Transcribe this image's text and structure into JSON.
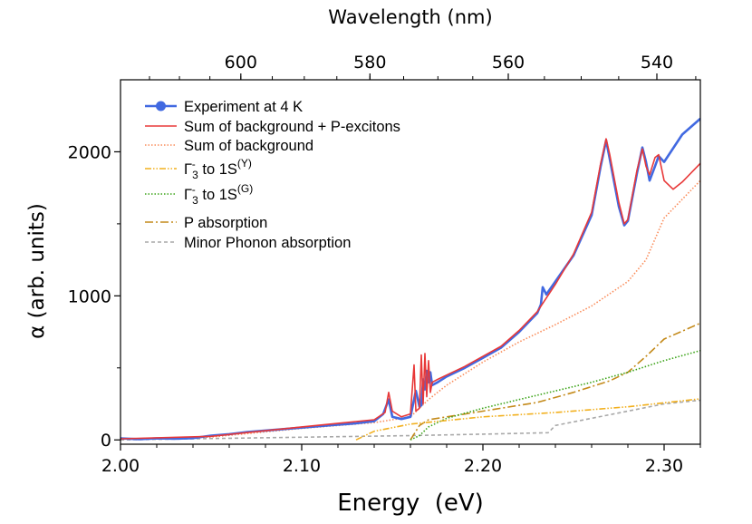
{
  "chart_data": {
    "type": "line",
    "xlabel": "Energy  (eV)",
    "ylabel": "α (arb. units)",
    "top_xlabel": "Wavelength (nm)",
    "xlim": [
      2.0,
      2.32
    ],
    "ylim": [
      -30,
      2500
    ],
    "x_ticks": [
      2.0,
      2.1,
      2.2,
      2.3
    ],
    "x_tick_labels": [
      "2.00",
      "2.10",
      "2.20",
      "2.30"
    ],
    "y_ticks": [
      0,
      1000,
      2000
    ],
    "y_tick_labels": [
      "0",
      "1000",
      "2000"
    ],
    "top_ticks_nm": [
      600,
      580,
      560,
      540
    ],
    "top_tick_labels": [
      "600",
      "580",
      "560",
      "540"
    ],
    "legend_position": "top-left",
    "series": [
      {
        "name": "Experiment at 4 K",
        "style": "solid-marker",
        "color": "#4169E1",
        "points": [
          [
            2.0,
            10
          ],
          [
            2.01,
            5
          ],
          [
            2.02,
            10
          ],
          [
            2.03,
            8
          ],
          [
            2.04,
            12
          ],
          [
            2.05,
            30
          ],
          [
            2.06,
            40
          ],
          [
            2.07,
            55
          ],
          [
            2.08,
            65
          ],
          [
            2.09,
            75
          ],
          [
            2.1,
            85
          ],
          [
            2.11,
            95
          ],
          [
            2.12,
            105
          ],
          [
            2.13,
            115
          ],
          [
            2.14,
            130
          ],
          [
            2.145,
            180
          ],
          [
            2.148,
            280
          ],
          [
            2.15,
            160
          ],
          [
            2.155,
            145
          ],
          [
            2.16,
            160
          ],
          [
            2.163,
            340
          ],
          [
            2.165,
            230
          ],
          [
            2.166,
            240
          ],
          [
            2.167,
            420
          ],
          [
            2.168,
            350
          ],
          [
            2.169,
            480
          ],
          [
            2.17,
            400
          ],
          [
            2.171,
            470
          ],
          [
            2.172,
            380
          ],
          [
            2.175,
            400
          ],
          [
            2.18,
            440
          ],
          [
            2.19,
            500
          ],
          [
            2.2,
            570
          ],
          [
            2.21,
            640
          ],
          [
            2.22,
            750
          ],
          [
            2.23,
            880
          ],
          [
            2.232,
            940
          ],
          [
            2.233,
            1060
          ],
          [
            2.235,
            1010
          ],
          [
            2.24,
            1100
          ],
          [
            2.25,
            1280
          ],
          [
            2.26,
            1560
          ],
          [
            2.265,
            1900
          ],
          [
            2.268,
            2080
          ],
          [
            2.27,
            1950
          ],
          [
            2.275,
            1620
          ],
          [
            2.278,
            1490
          ],
          [
            2.28,
            1520
          ],
          [
            2.285,
            1850
          ],
          [
            2.288,
            2030
          ],
          [
            2.29,
            1930
          ],
          [
            2.292,
            1800
          ],
          [
            2.295,
            1900
          ],
          [
            2.297,
            1970
          ],
          [
            2.3,
            1930
          ],
          [
            2.31,
            2120
          ],
          [
            2.32,
            2230
          ]
        ]
      },
      {
        "name": "Sum of background + P-excitons",
        "style": "solid",
        "color": "#E83838",
        "points": [
          [
            2.0,
            8
          ],
          [
            2.05,
            25
          ],
          [
            2.1,
            90
          ],
          [
            2.14,
            140
          ],
          [
            2.146,
            190
          ],
          [
            2.148,
            330
          ],
          [
            2.15,
            200
          ],
          [
            2.155,
            160
          ],
          [
            2.16,
            180
          ],
          [
            2.162,
            520
          ],
          [
            2.163,
            200
          ],
          [
            2.165,
            220
          ],
          [
            2.166,
            590
          ],
          [
            2.167,
            250
          ],
          [
            2.168,
            600
          ],
          [
            2.169,
            300
          ],
          [
            2.17,
            550
          ],
          [
            2.171,
            330
          ],
          [
            2.172,
            400
          ],
          [
            2.175,
            420
          ],
          [
            2.18,
            450
          ],
          [
            2.19,
            510
          ],
          [
            2.2,
            580
          ],
          [
            2.21,
            650
          ],
          [
            2.22,
            760
          ],
          [
            2.23,
            890
          ],
          [
            2.24,
            1080
          ],
          [
            2.25,
            1290
          ],
          [
            2.26,
            1580
          ],
          [
            2.265,
            1920
          ],
          [
            2.268,
            2090
          ],
          [
            2.27,
            1980
          ],
          [
            2.275,
            1650
          ],
          [
            2.278,
            1500
          ],
          [
            2.28,
            1530
          ],
          [
            2.285,
            1870
          ],
          [
            2.288,
            2020
          ],
          [
            2.29,
            1900
          ],
          [
            2.292,
            1840
          ],
          [
            2.295,
            1960
          ],
          [
            2.297,
            1980
          ],
          [
            2.3,
            1800
          ],
          [
            2.305,
            1740
          ],
          [
            2.31,
            1790
          ],
          [
            2.32,
            1920
          ]
        ]
      },
      {
        "name": "Sum of background",
        "style": "dotted",
        "color": "#FA8C5A",
        "points": [
          [
            2.0,
            5
          ],
          [
            2.05,
            20
          ],
          [
            2.1,
            80
          ],
          [
            2.14,
            120
          ],
          [
            2.16,
            160
          ],
          [
            2.17,
            280
          ],
          [
            2.18,
            380
          ],
          [
            2.2,
            540
          ],
          [
            2.22,
            680
          ],
          [
            2.24,
            800
          ],
          [
            2.26,
            930
          ],
          [
            2.28,
            1100
          ],
          [
            2.29,
            1250
          ],
          [
            2.3,
            1540
          ],
          [
            2.32,
            1800
          ]
        ]
      },
      {
        "name": "Γ3- to 1S(Y)",
        "style": "dash-dot-dot",
        "color": "#F2B01E",
        "points": [
          [
            2.13,
            0
          ],
          [
            2.14,
            60
          ],
          [
            2.16,
            110
          ],
          [
            2.2,
            160
          ],
          [
            2.24,
            190
          ],
          [
            2.28,
            230
          ],
          [
            2.32,
            285
          ]
        ]
      },
      {
        "name": "Γ3- to 1S(G)",
        "style": "dotted",
        "color": "#3AA316",
        "points": [
          [
            2.16,
            0
          ],
          [
            2.165,
            30
          ],
          [
            2.17,
            90
          ],
          [
            2.18,
            150
          ],
          [
            2.2,
            220
          ],
          [
            2.22,
            280
          ],
          [
            2.24,
            340
          ],
          [
            2.26,
            400
          ],
          [
            2.28,
            470
          ],
          [
            2.3,
            550
          ],
          [
            2.32,
            620
          ]
        ]
      },
      {
        "name": "P absorption",
        "style": "dash-dot",
        "color": "#C48A1A",
        "points": [
          [
            2.16,
            0
          ],
          [
            2.162,
            40
          ],
          [
            2.165,
            100
          ],
          [
            2.17,
            140
          ],
          [
            2.2,
            200
          ],
          [
            2.23,
            260
          ],
          [
            2.25,
            330
          ],
          [
            2.27,
            410
          ],
          [
            2.28,
            470
          ],
          [
            2.29,
            580
          ],
          [
            2.3,
            700
          ],
          [
            2.32,
            810
          ]
        ]
      },
      {
        "name": "Minor Phonon absorption",
        "style": "dashed",
        "color": "#A8A8A8",
        "points": [
          [
            2.0,
            0
          ],
          [
            2.16,
            30
          ],
          [
            2.2,
            40
          ],
          [
            2.236,
            50
          ],
          [
            2.24,
            100
          ],
          [
            2.26,
            150
          ],
          [
            2.28,
            200
          ],
          [
            2.3,
            250
          ],
          [
            2.32,
            275
          ]
        ]
      }
    ]
  }
}
